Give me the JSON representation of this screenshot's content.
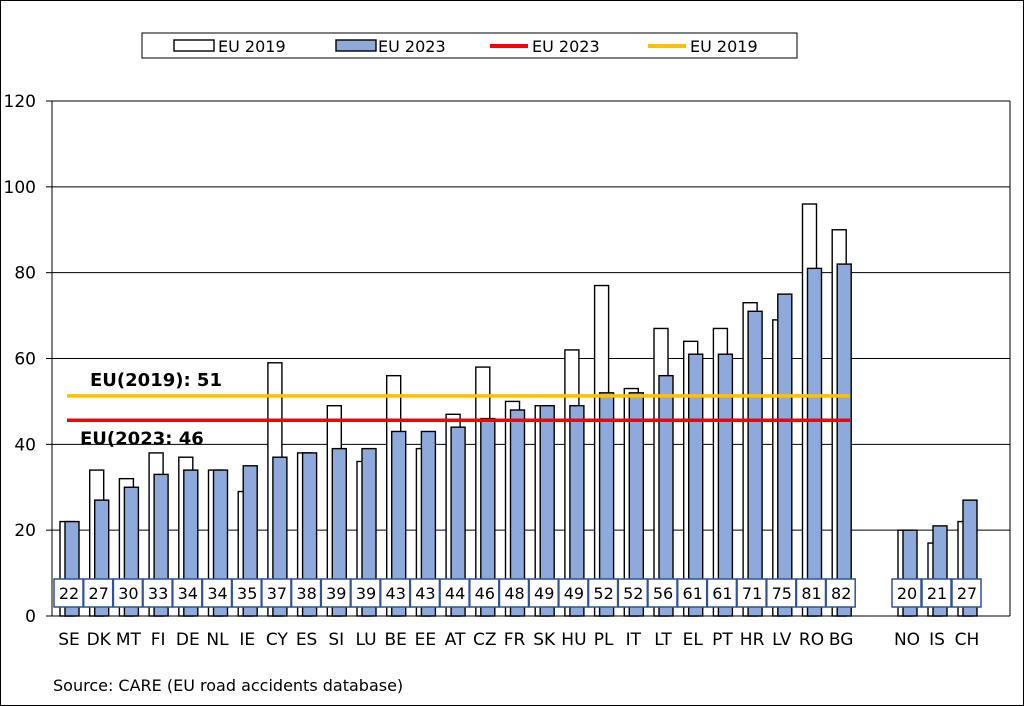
{
  "chart_data": {
    "type": "bar",
    "categories": [
      "SE",
      "DK",
      "MT",
      "FI",
      "DE",
      "NL",
      "IE",
      "CY",
      "ES",
      "SI",
      "LU",
      "BE",
      "EE",
      "AT",
      "CZ",
      "FR",
      "SK",
      "HU",
      "PL",
      "IT",
      "LT",
      "EL",
      "PT",
      "HR",
      "LV",
      "RO",
      "BG",
      "NO",
      "IS",
      "CH"
    ],
    "series": [
      {
        "name": "EU 2019",
        "values": [
          22,
          34,
          32,
          38,
          37,
          34,
          29,
          59,
          38,
          49,
          36,
          56,
          39,
          47,
          58,
          50,
          49,
          62,
          77,
          53,
          67,
          64,
          67,
          73,
          69,
          96,
          90,
          20,
          17,
          22
        ]
      },
      {
        "name": "EU 2023",
        "values": [
          22,
          27,
          30,
          33,
          34,
          34,
          35,
          37,
          38,
          39,
          39,
          43,
          43,
          44,
          46,
          48,
          49,
          49,
          52,
          52,
          56,
          61,
          61,
          71,
          75,
          81,
          82,
          20,
          21,
          27
        ]
      }
    ],
    "value_labels": [
      "22",
      "27",
      "30",
      "33",
      "34",
      "34",
      "35",
      "37",
      "38",
      "39",
      "39",
      "43",
      "43",
      "44",
      "46",
      "48",
      "49",
      "49",
      "52",
      "52",
      "56",
      "61",
      "61",
      "71",
      "75",
      "81",
      "82",
      "20",
      "21",
      "27"
    ],
    "ylim": [
      0,
      120
    ],
    "yticks": [
      "0",
      "20",
      "40",
      "60",
      "80",
      "100",
      "120"
    ],
    "grid": true,
    "reference_lines": [
      {
        "name": "EU 2023",
        "value": 45.6,
        "color": "#ff0000",
        "annotation": "EU(2023: 46"
      },
      {
        "name": "EU 2019",
        "value": 51.3,
        "color": "#ffc000",
        "annotation": "EU(2019): 51"
      }
    ],
    "legend": {
      "placement": "top",
      "entries": [
        "EU 2019",
        "EU 2023",
        "EU 2023",
        "EU 2019"
      ]
    },
    "colors": {
      "bar2019_fill": "#ffffff",
      "bar2023_fill": "#8ea9db",
      "line2023": "#ff0000",
      "line2019": "#ffc000",
      "label_box_border": "#2f5496"
    },
    "source": "Source: CARE (EU road accidents database)"
  }
}
